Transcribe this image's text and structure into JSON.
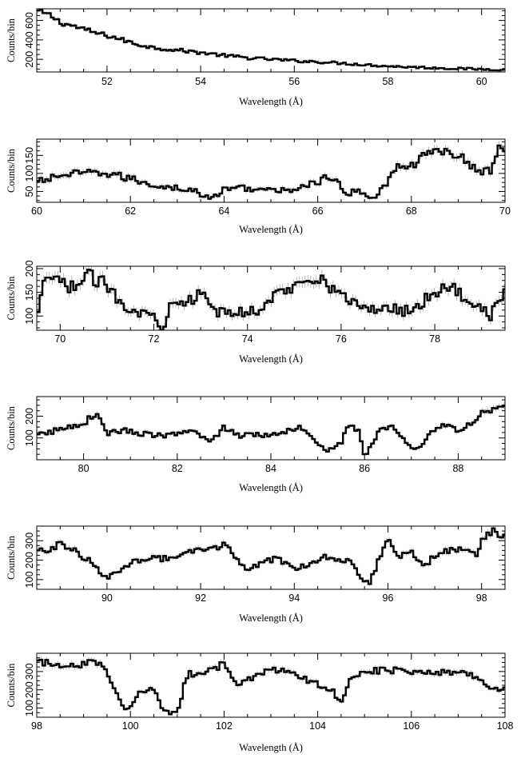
{
  "chart_data": [
    {
      "type": "line",
      "xlabel": "Wavelength (Å)",
      "ylabel": "Counts/bin",
      "xlim": [
        50.5,
        60.5
      ],
      "ylim": [
        70,
        720
      ],
      "xticks": [
        52,
        54,
        56,
        58,
        60
      ],
      "yticks": [
        200,
        400,
        600
      ],
      "anchors": [
        [
          50.5,
          700
        ],
        [
          50.8,
          650
        ],
        [
          51.0,
          580
        ],
        [
          51.3,
          540
        ],
        [
          51.7,
          480
        ],
        [
          52.2,
          420
        ],
        [
          52.6,
          360
        ],
        [
          53.0,
          320
        ],
        [
          53.5,
          295
        ],
        [
          54.0,
          270
        ],
        [
          54.5,
          240
        ],
        [
          55.0,
          215
        ],
        [
          55.5,
          200
        ],
        [
          56.0,
          185
        ],
        [
          56.5,
          175
        ],
        [
          57.0,
          160
        ],
        [
          57.5,
          145
        ],
        [
          58.0,
          130
        ],
        [
          58.5,
          120
        ],
        [
          59.0,
          112
        ],
        [
          59.5,
          105
        ],
        [
          60.0,
          98
        ],
        [
          60.5,
          95
        ]
      ]
    },
    {
      "type": "line",
      "xlabel": "Wavelength (Å)",
      "ylabel": "Counts/bin",
      "xlim": [
        60,
        70
      ],
      "ylim": [
        20,
        195
      ],
      "xticks": [
        60,
        62,
        64,
        66,
        68,
        70
      ],
      "yticks": [
        50,
        100,
        150
      ],
      "anchors": [
        [
          60.0,
          75
        ],
        [
          60.5,
          95
        ],
        [
          61.0,
          100
        ],
        [
          61.5,
          100
        ],
        [
          62.0,
          85
        ],
        [
          62.3,
          75
        ],
        [
          62.6,
          65
        ],
        [
          63.0,
          60
        ],
        [
          63.4,
          50
        ],
        [
          63.7,
          28
        ],
        [
          64.0,
          55
        ],
        [
          64.3,
          62
        ],
        [
          64.6,
          58
        ],
        [
          65.0,
          52
        ],
        [
          65.3,
          52
        ],
        [
          65.7,
          65
        ],
        [
          66.0,
          75
        ],
        [
          66.2,
          90
        ],
        [
          66.4,
          80
        ],
        [
          66.6,
          35
        ],
        [
          66.8,
          55
        ],
        [
          67.0,
          45
        ],
        [
          67.2,
          30
        ],
        [
          67.5,
          80
        ],
        [
          67.8,
          130
        ],
        [
          68.0,
          120
        ],
        [
          68.3,
          150
        ],
        [
          68.5,
          165
        ],
        [
          68.8,
          160
        ],
        [
          69.0,
          150
        ],
        [
          69.3,
          120
        ],
        [
          69.5,
          100
        ],
        [
          69.7,
          110
        ],
        [
          69.9,
          180
        ],
        [
          70.0,
          170
        ]
      ]
    },
    {
      "type": "line",
      "xlabel": "Wavelength (Å)",
      "ylabel": "Counts/bin",
      "xlim": [
        69.5,
        79.5
      ],
      "ylim": [
        70,
        205
      ],
      "xticks": [
        70,
        72,
        74,
        76,
        78
      ],
      "yticks": [
        100,
        150,
        200
      ],
      "anchors": [
        [
          69.5,
          90
        ],
        [
          69.7,
          185
        ],
        [
          70.0,
          170
        ],
        [
          70.3,
          160
        ],
        [
          70.6,
          185
        ],
        [
          71.0,
          165
        ],
        [
          71.3,
          130
        ],
        [
          71.6,
          110
        ],
        [
          72.0,
          100
        ],
        [
          72.2,
          75
        ],
        [
          72.4,
          140
        ],
        [
          72.7,
          130
        ],
        [
          73.0,
          145
        ],
        [
          73.3,
          110
        ],
        [
          73.6,
          105
        ],
        [
          74.0,
          110
        ],
        [
          74.3,
          115
        ],
        [
          74.6,
          145
        ],
        [
          75.0,
          160
        ],
        [
          75.3,
          185
        ],
        [
          75.6,
          180
        ],
        [
          76.0,
          140
        ],
        [
          76.3,
          130
        ],
        [
          76.6,
          110
        ],
        [
          77.0,
          120
        ],
        [
          77.3,
          110
        ],
        [
          77.6,
          120
        ],
        [
          78.0,
          150
        ],
        [
          78.3,
          165
        ],
        [
          78.6,
          140
        ],
        [
          79.0,
          120
        ],
        [
          79.2,
          100
        ],
        [
          79.5,
          155
        ]
      ]
    },
    {
      "type": "line",
      "xlabel": "Wavelength (Å)",
      "ylabel": "Counts/bin",
      "xlim": [
        79,
        89
      ],
      "ylim": [
        0,
        290
      ],
      "xticks": [
        80,
        82,
        84,
        86,
        88
      ],
      "yticks": [
        100,
        200
      ],
      "anchors": [
        [
          79.0,
          110
        ],
        [
          79.5,
          140
        ],
        [
          80.0,
          170
        ],
        [
          80.3,
          215
        ],
        [
          80.5,
          120
        ],
        [
          80.8,
          135
        ],
        [
          81.0,
          130
        ],
        [
          81.5,
          110
        ],
        [
          82.0,
          115
        ],
        [
          82.4,
          130
        ],
        [
          82.7,
          80
        ],
        [
          83.0,
          150
        ],
        [
          83.3,
          110
        ],
        [
          83.7,
          120
        ],
        [
          84.0,
          110
        ],
        [
          84.4,
          140
        ],
        [
          84.7,
          150
        ],
        [
          85.0,
          80
        ],
        [
          85.2,
          40
        ],
        [
          85.5,
          80
        ],
        [
          85.7,
          170
        ],
        [
          85.9,
          120
        ],
        [
          86.0,
          10
        ],
        [
          86.3,
          130
        ],
        [
          86.6,
          160
        ],
        [
          86.9,
          70
        ],
        [
          87.1,
          40
        ],
        [
          87.4,
          120
        ],
        [
          87.7,
          170
        ],
        [
          88.0,
          130
        ],
        [
          88.3,
          165
        ],
        [
          88.5,
          210
        ],
        [
          88.8,
          245
        ],
        [
          89.0,
          265
        ]
      ]
    },
    {
      "type": "line",
      "xlabel": "Wavelength (Å)",
      "ylabel": "Counts/bin",
      "xlim": [
        88.5,
        98.5
      ],
      "ylim": [
        50,
        375
      ],
      "xticks": [
        90,
        92,
        94,
        96,
        98
      ],
      "yticks": [
        100,
        200,
        300
      ],
      "anchors": [
        [
          88.5,
          240
        ],
        [
          88.8,
          260
        ],
        [
          89.0,
          280
        ],
        [
          89.3,
          250
        ],
        [
          89.6,
          200
        ],
        [
          90.0,
          110
        ],
        [
          90.3,
          140
        ],
        [
          90.6,
          200
        ],
        [
          91.0,
          215
        ],
        [
          91.4,
          200
        ],
        [
          91.8,
          240
        ],
        [
          92.2,
          260
        ],
        [
          92.5,
          280
        ],
        [
          92.8,
          200
        ],
        [
          93.0,
          150
        ],
        [
          93.3,
          180
        ],
        [
          93.6,
          210
        ],
        [
          94.0,
          160
        ],
        [
          94.3,
          180
        ],
        [
          94.6,
          220
        ],
        [
          95.0,
          200
        ],
        [
          95.2,
          210
        ],
        [
          95.4,
          110
        ],
        [
          95.6,
          80
        ],
        [
          95.8,
          200
        ],
        [
          96.0,
          300
        ],
        [
          96.2,
          220
        ],
        [
          96.5,
          240
        ],
        [
          96.8,
          170
        ],
        [
          97.1,
          250
        ],
        [
          97.4,
          250
        ],
        [
          97.7,
          250
        ],
        [
          97.9,
          220
        ],
        [
          98.0,
          300
        ],
        [
          98.2,
          350
        ],
        [
          98.5,
          330
        ]
      ]
    },
    {
      "type": "line",
      "xlabel": "Wavelength (Å)",
      "ylabel": "Counts/bin",
      "xlim": [
        98,
        108
      ],
      "ylim": [
        50,
        400
      ],
      "xticks": [
        98,
        100,
        102,
        104,
        106,
        108
      ],
      "yticks": [
        100,
        200,
        300
      ],
      "anchors": [
        [
          98.0,
          350
        ],
        [
          98.5,
          340
        ],
        [
          99.0,
          340
        ],
        [
          99.3,
          355
        ],
        [
          99.5,
          300
        ],
        [
          99.7,
          200
        ],
        [
          99.9,
          80
        ],
        [
          100.2,
          180
        ],
        [
          100.5,
          210
        ],
        [
          100.7,
          80
        ],
        [
          101.0,
          70
        ],
        [
          101.2,
          280
        ],
        [
          101.5,
          300
        ],
        [
          101.8,
          320
        ],
        [
          102.0,
          340
        ],
        [
          102.3,
          230
        ],
        [
          102.6,
          260
        ],
        [
          103.0,
          310
        ],
        [
          103.3,
          300
        ],
        [
          103.7,
          260
        ],
        [
          104.0,
          230
        ],
        [
          104.3,
          200
        ],
        [
          104.5,
          130
        ],
        [
          104.7,
          280
        ],
        [
          105.0,
          300
        ],
        [
          105.5,
          310
        ],
        [
          106.0,
          300
        ],
        [
          106.5,
          300
        ],
        [
          107.0,
          300
        ],
        [
          107.3,
          280
        ],
        [
          107.6,
          240
        ],
        [
          107.9,
          180
        ],
        [
          108.0,
          200
        ]
      ]
    }
  ]
}
